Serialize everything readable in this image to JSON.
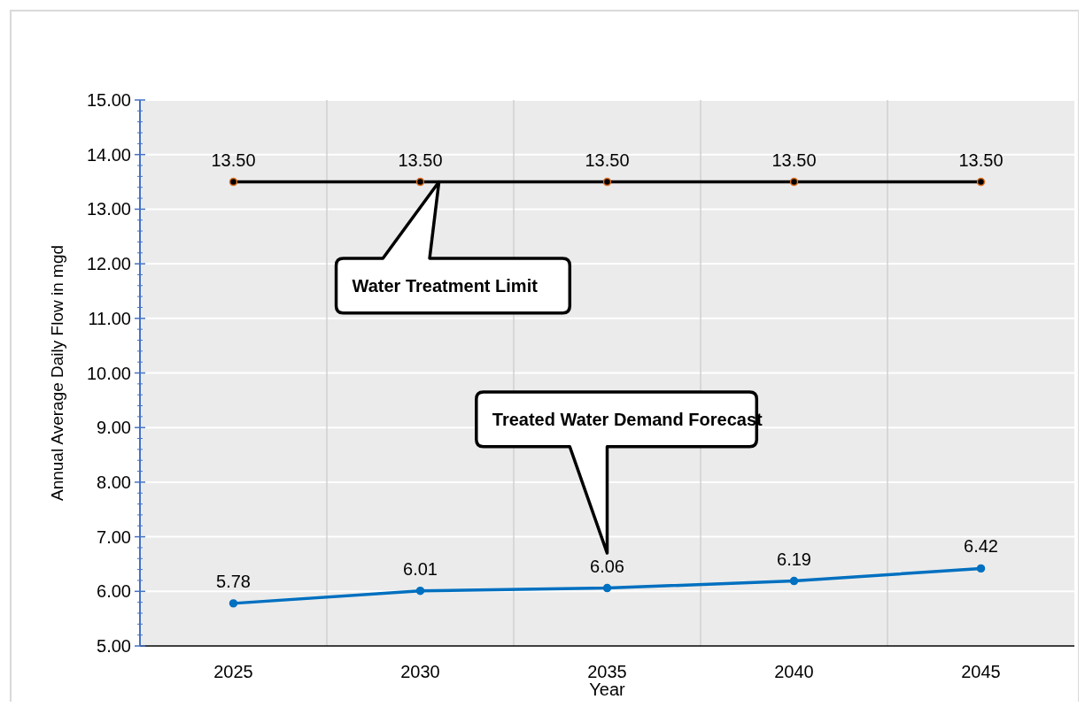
{
  "chart_data": {
    "type": "line",
    "xlabel": "Year",
    "ylabel": "Annual Average Daily Flow in mgd",
    "categories": [
      "2025",
      "2030",
      "2035",
      "2040",
      "2045"
    ],
    "series": [
      {
        "color": "#000000",
        "values": [
          13.5,
          13.5,
          13.5,
          13.5,
          13.5
        ],
        "value_labels": [
          "13.50",
          "13.50",
          "13.50",
          "13.50",
          "13.50"
        ]
      },
      {
        "color": "#0070c0",
        "values": [
          5.78,
          6.01,
          6.06,
          6.19,
          6.42
        ]
      }
    ],
    "ylim": [
      5,
      15
    ],
    "yticks": [
      {
        "value": 5,
        "label": "5.00"
      },
      {
        "value": 6,
        "label": "6.00"
      },
      {
        "value": 7,
        "label": "7.00"
      },
      {
        "value": 8,
        "label": "8.00"
      },
      {
        "value": 9,
        "label": "9.00"
      },
      {
        "value": 10,
        "label": "10.00"
      },
      {
        "value": 11,
        "label": "11.00"
      },
      {
        "value": 12,
        "label": "12.00"
      },
      {
        "value": 13,
        "label": "13.00"
      },
      {
        "value": 14,
        "label": "14.00"
      },
      {
        "value": 15,
        "label": "15.00"
      }
    ],
    "grid": true,
    "data_labels": true,
    "marker": "circle",
    "annotations": [
      "Water Treatment Limit",
      "Treated Water Demand Forecast"
    ]
  }
}
